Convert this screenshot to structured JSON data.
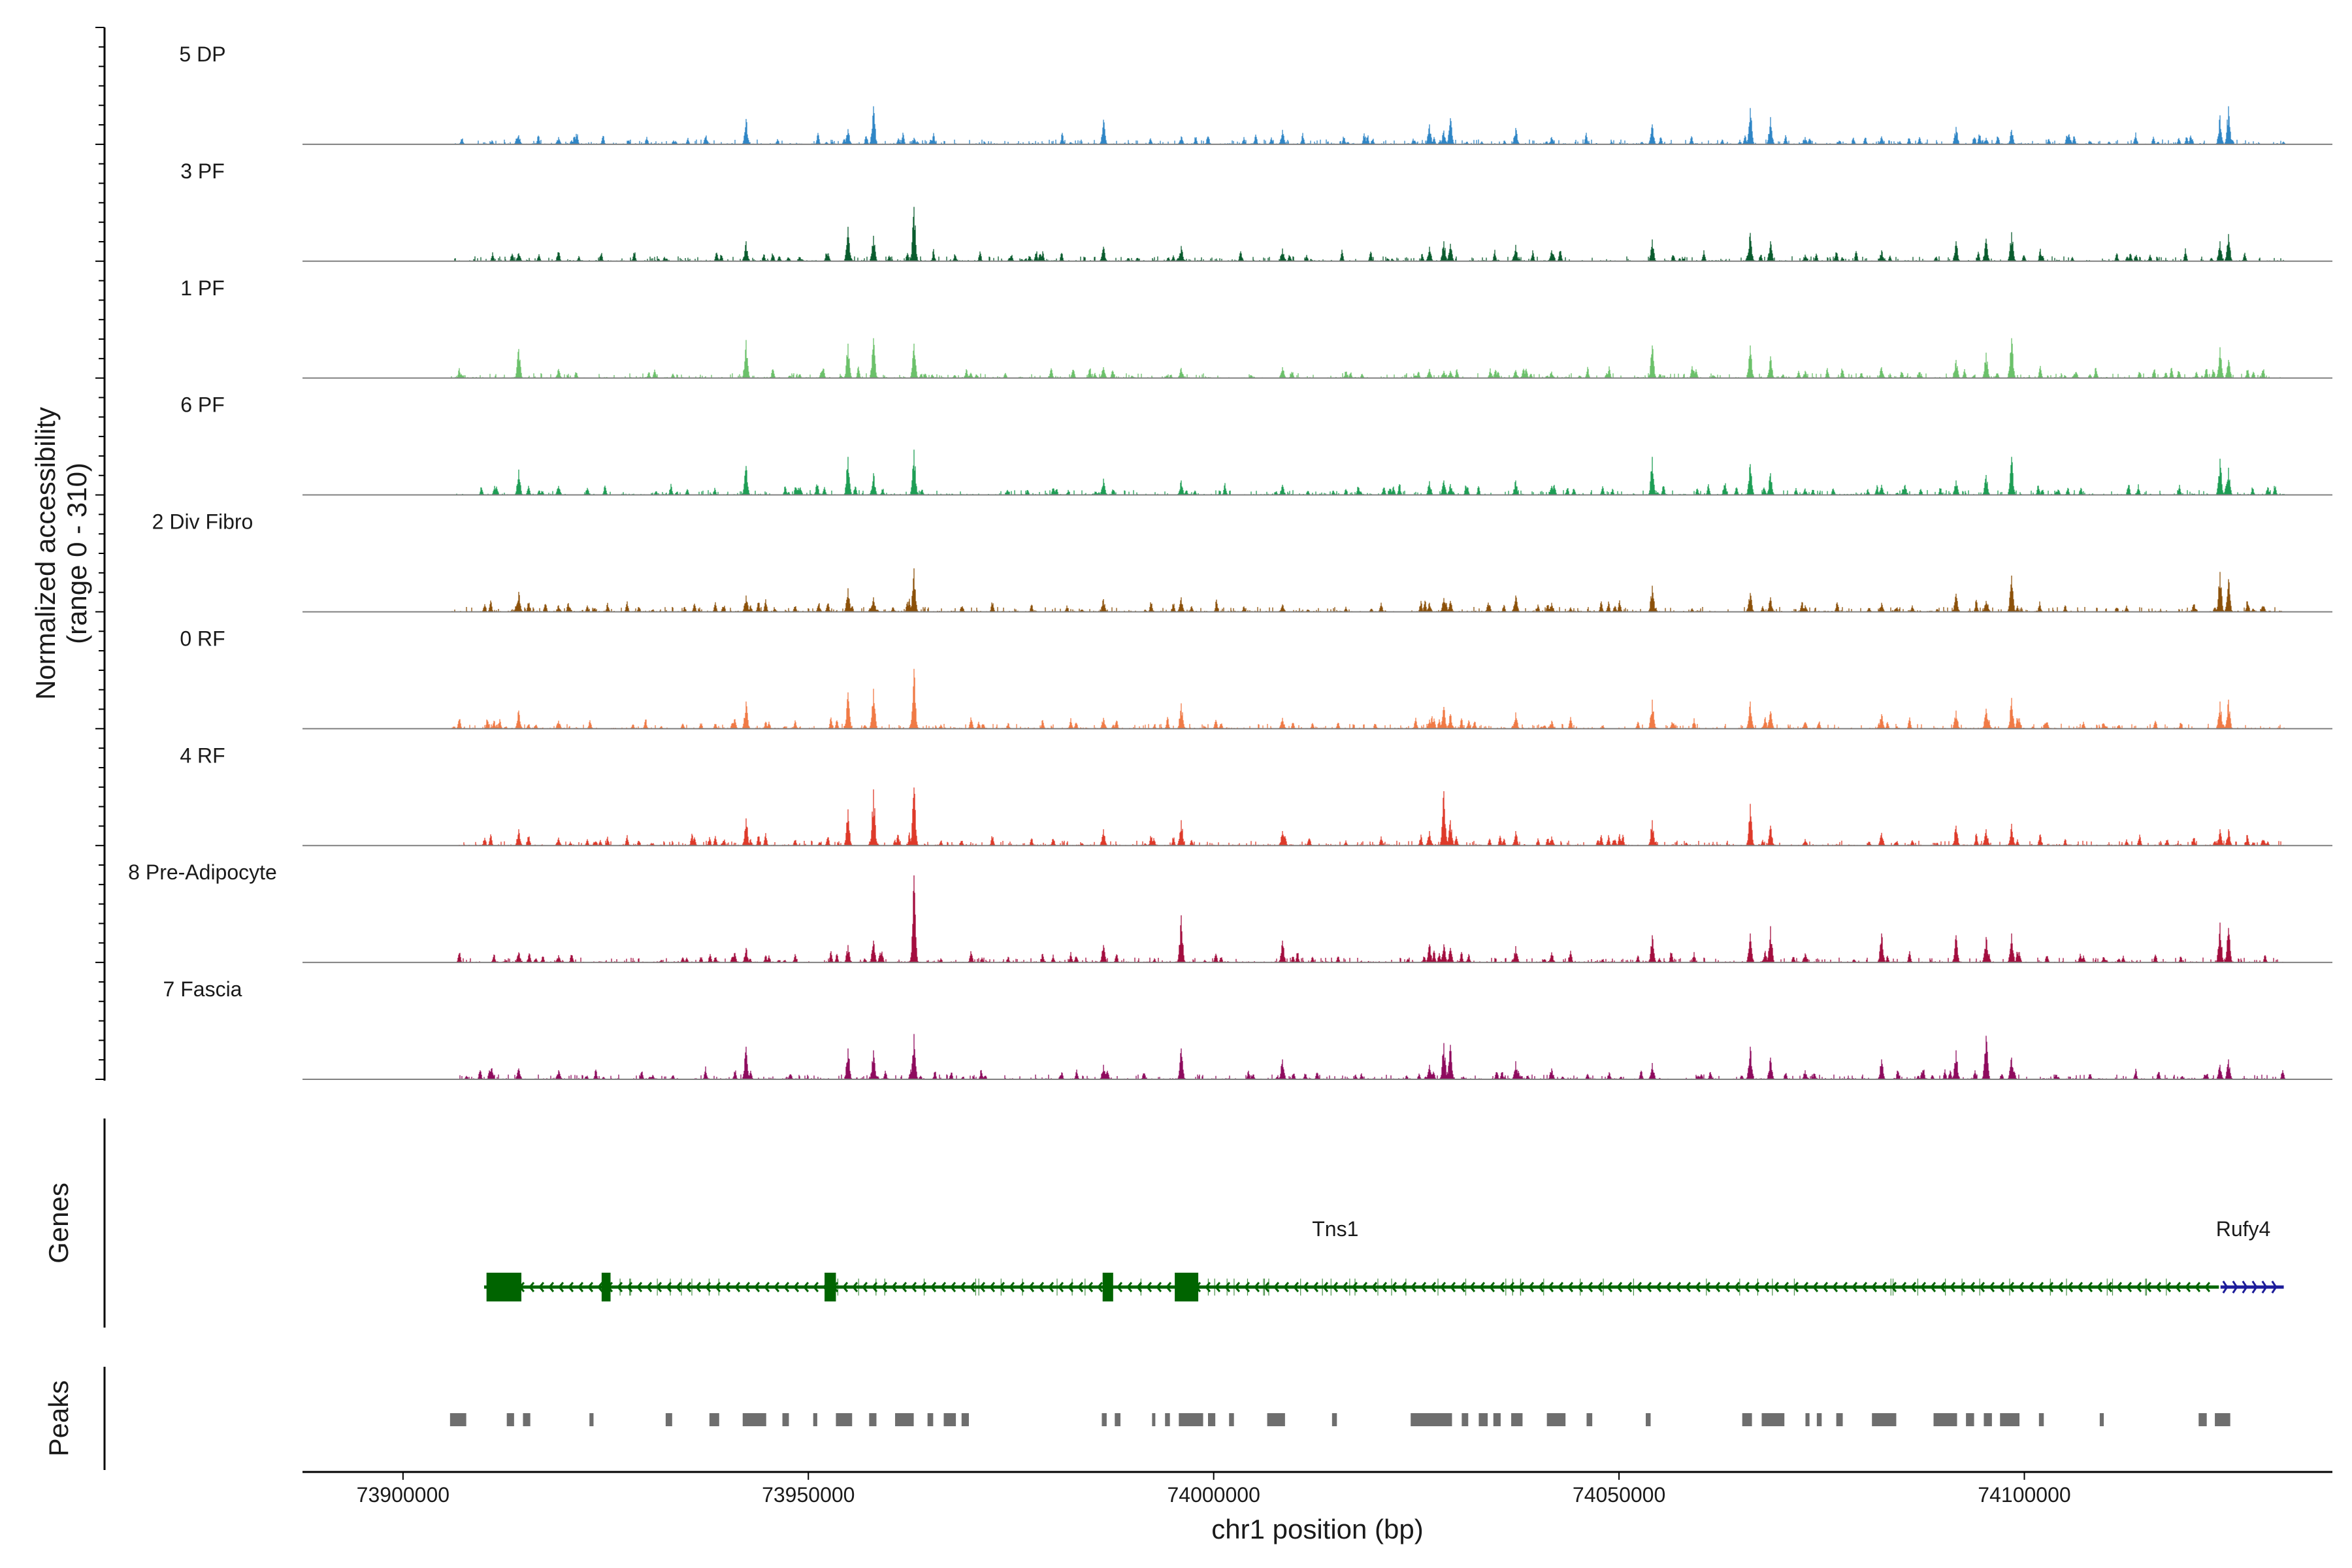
{
  "chart_data": {
    "type": "area",
    "title": "",
    "xlabel": "chr1 position (bp)",
    "ylabel_lines": [
      "Normalized accessibility",
      "(range 0 - 310)"
    ],
    "ylim": [
      0,
      310
    ],
    "xlim": [
      73887600,
      74138000
    ],
    "x_ticks": [
      73900000,
      73950000,
      74000000,
      74050000,
      74100000
    ],
    "x_tick_labels": [
      "73900000",
      "73950000",
      "74000000",
      "74050000",
      "74100000"
    ],
    "region": [
      73906000,
      74132000
    ],
    "panels": [
      "Normalized accessibility",
      "Genes",
      "Peaks"
    ],
    "panel_titles": {
      "genes": "Genes",
      "peaks": "Peaks"
    },
    "shared_peak_positions": [
      73914300,
      73919200,
      73942300,
      73954900,
      73958000,
      73963000,
      73986400,
      73996000,
      74008500,
      74026600,
      74028400,
      74029200,
      74037300,
      74041700,
      74054100,
      74066200,
      74068700,
      74073000,
      74082400,
      74091600,
      74095300,
      74098400,
      74124100,
      74125200
    ],
    "series": [
      {
        "name": "5 DP",
        "color": "#2F86C6",
        "peaks": [
          25,
          20,
          70,
          42,
          105,
          18,
          68,
          22,
          40,
          55,
          38,
          72,
          45,
          20,
          55,
          100,
          75,
          20,
          22,
          48,
          18,
          40,
          80,
          105
        ]
      },
      {
        "name": "3 PF",
        "color": "#0A5C2E",
        "peaks": [
          22,
          18,
          55,
          95,
          70,
          150,
          40,
          42,
          35,
          40,
          55,
          48,
          45,
          30,
          60,
          78,
          55,
          18,
          30,
          55,
          62,
          80,
          55,
          75
        ]
      },
      {
        "name": "1 PF",
        "color": "#6BC16A",
        "peaks": [
          80,
          25,
          105,
          95,
          110,
          95,
          30,
          28,
          30,
          25,
          20,
          20,
          22,
          18,
          90,
          90,
          60,
          20,
          30,
          50,
          70,
          110,
          85,
          50
        ]
      },
      {
        "name": "6 PF",
        "color": "#1E9E55",
        "peaks": [
          70,
          25,
          80,
          105,
          60,
          125,
          45,
          40,
          28,
          38,
          40,
          30,
          40,
          25,
          105,
          85,
          60,
          18,
          28,
          40,
          55,
          105,
          100,
          75
        ]
      },
      {
        "name": "2 Div Fibro",
        "color": "#8C510A",
        "peaks": [
          55,
          18,
          45,
          65,
          40,
          120,
          35,
          40,
          20,
          25,
          38,
          30,
          45,
          25,
          72,
          52,
          40,
          18,
          25,
          50,
          30,
          100,
          110,
          90
        ]
      },
      {
        "name": "0 RF",
        "color": "#F07A45",
        "peaks": [
          50,
          22,
          75,
          100,
          110,
          165,
          30,
          70,
          30,
          25,
          60,
          40,
          45,
          22,
          80,
          75,
          48,
          18,
          40,
          50,
          55,
          85,
          75,
          80
        ]
      },
      {
        "name": "4 RF",
        "color": "#DE3A2A",
        "peaks": [
          45,
          22,
          75,
          100,
          155,
          160,
          45,
          70,
          40,
          40,
          150,
          70,
          40,
          25,
          70,
          115,
          55,
          18,
          35,
          55,
          45,
          60,
          45,
          45
        ]
      },
      {
        "name": "8 Pre-Adipocyte",
        "color": "#A30E3F",
        "peaks": [
          28,
          20,
          40,
          48,
          60,
          240,
          48,
          130,
          60,
          50,
          50,
          40,
          45,
          28,
          75,
          80,
          100,
          25,
          80,
          75,
          70,
          80,
          110,
          95
        ]
      },
      {
        "name": "7 Fascia",
        "color": "#8E0B5E",
        "peaks": [
          30,
          25,
          90,
          85,
          80,
          125,
          40,
          85,
          55,
          40,
          100,
          95,
          50,
          30,
          45,
          90,
          60,
          25,
          55,
          80,
          120,
          60,
          40,
          55
        ]
      }
    ],
    "genes": [
      {
        "name": "Tns1",
        "strand": "-",
        "start": 73910000,
        "end": 74124000,
        "color": "#006400",
        "exons": [
          [
            73910300,
            73914600
          ],
          [
            73924500,
            73925600
          ],
          [
            73952000,
            73953400
          ],
          [
            73986300,
            73987600
          ],
          [
            73995200,
            73998100
          ]
        ]
      },
      {
        "name": "Rufy4",
        "strand": "+",
        "start": 74124200,
        "end": 74132000,
        "color": "#1C1C9A",
        "exons": []
      }
    ],
    "peaks": [
      [
        73905800,
        73907800
      ],
      [
        73912800,
        73913700
      ],
      [
        73914800,
        73915700
      ],
      [
        73923000,
        73923500
      ],
      [
        73932400,
        73933200
      ],
      [
        73937800,
        73939000
      ],
      [
        73941900,
        73944800
      ],
      [
        73946800,
        73947600
      ],
      [
        73950600,
        73951100
      ],
      [
        73953400,
        73955400
      ],
      [
        73957500,
        73958400
      ],
      [
        73960700,
        73963000
      ],
      [
        73964700,
        73965400
      ],
      [
        73966700,
        73968200
      ],
      [
        73968900,
        73969800
      ],
      [
        73986200,
        73986800
      ],
      [
        73987800,
        73988500
      ],
      [
        73992400,
        73992800
      ],
      [
        73994000,
        73994600
      ],
      [
        73995700,
        73998700
      ],
      [
        73999300,
        74000200
      ],
      [
        74001900,
        74002500
      ],
      [
        74006600,
        74008800
      ],
      [
        74014600,
        74015200
      ],
      [
        74024300,
        74029400
      ],
      [
        74030600,
        74031400
      ],
      [
        74032700,
        74033800
      ],
      [
        74034500,
        74035400
      ],
      [
        74036700,
        74038100
      ],
      [
        74041100,
        74043400
      ],
      [
        74046000,
        74046700
      ],
      [
        74053300,
        74053900
      ],
      [
        74065200,
        74066400
      ],
      [
        74067600,
        74070400
      ],
      [
        74073000,
        74073500
      ],
      [
        74074400,
        74075000
      ],
      [
        74076800,
        74077600
      ],
      [
        74081200,
        74084200
      ],
      [
        74088800,
        74091700
      ],
      [
        74092800,
        74093800
      ],
      [
        74095000,
        74096000
      ],
      [
        74097000,
        74099400
      ],
      [
        74101800,
        74102400
      ],
      [
        74109300,
        74109800
      ],
      [
        74121500,
        74122500
      ],
      [
        74123500,
        74125400
      ]
    ]
  }
}
